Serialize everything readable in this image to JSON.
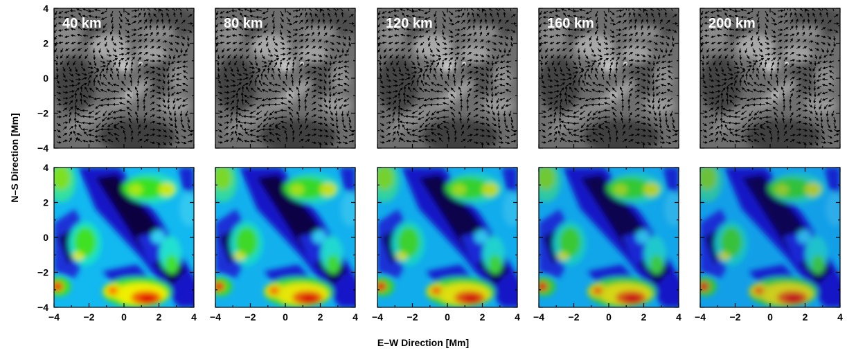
{
  "figure": {
    "xlabel": "E–W Direction   [Mm]",
    "ylabel": "N–S Direction   [Mm]"
  },
  "chart_data": {
    "type": "heatmap",
    "description_rows": [
      "velocity vectors over intensity",
      "velocity magnitude"
    ],
    "panels": [
      "40 km",
      "80 km",
      "120 km",
      "160 km",
      "200 km"
    ],
    "xlabel": "E–W Direction   [Mm]",
    "ylabel": "N–S Direction   [Mm]",
    "xlim": [
      -4,
      4
    ],
    "ylim": [
      -4,
      4
    ],
    "xticks": [
      -4,
      -2,
      0,
      2,
      4
    ],
    "yticks": [
      -4,
      -2,
      0,
      2,
      4
    ],
    "xtick_labels": [
      "−4",
      "−2",
      "0",
      "2",
      "4"
    ],
    "ytick_labels": [
      "−4",
      "−2",
      "0",
      "2",
      "4"
    ],
    "intensity_colormap": "grayscale",
    "magnitude_colormap": "rainbow",
    "colors": {
      "low": "#0a0430",
      "mid_low": "#1a24d0",
      "mid": "#10e8e0",
      "mid_high": "#2ee020",
      "high_yellow": "#f5f000",
      "highest": "#e00000"
    }
  }
}
